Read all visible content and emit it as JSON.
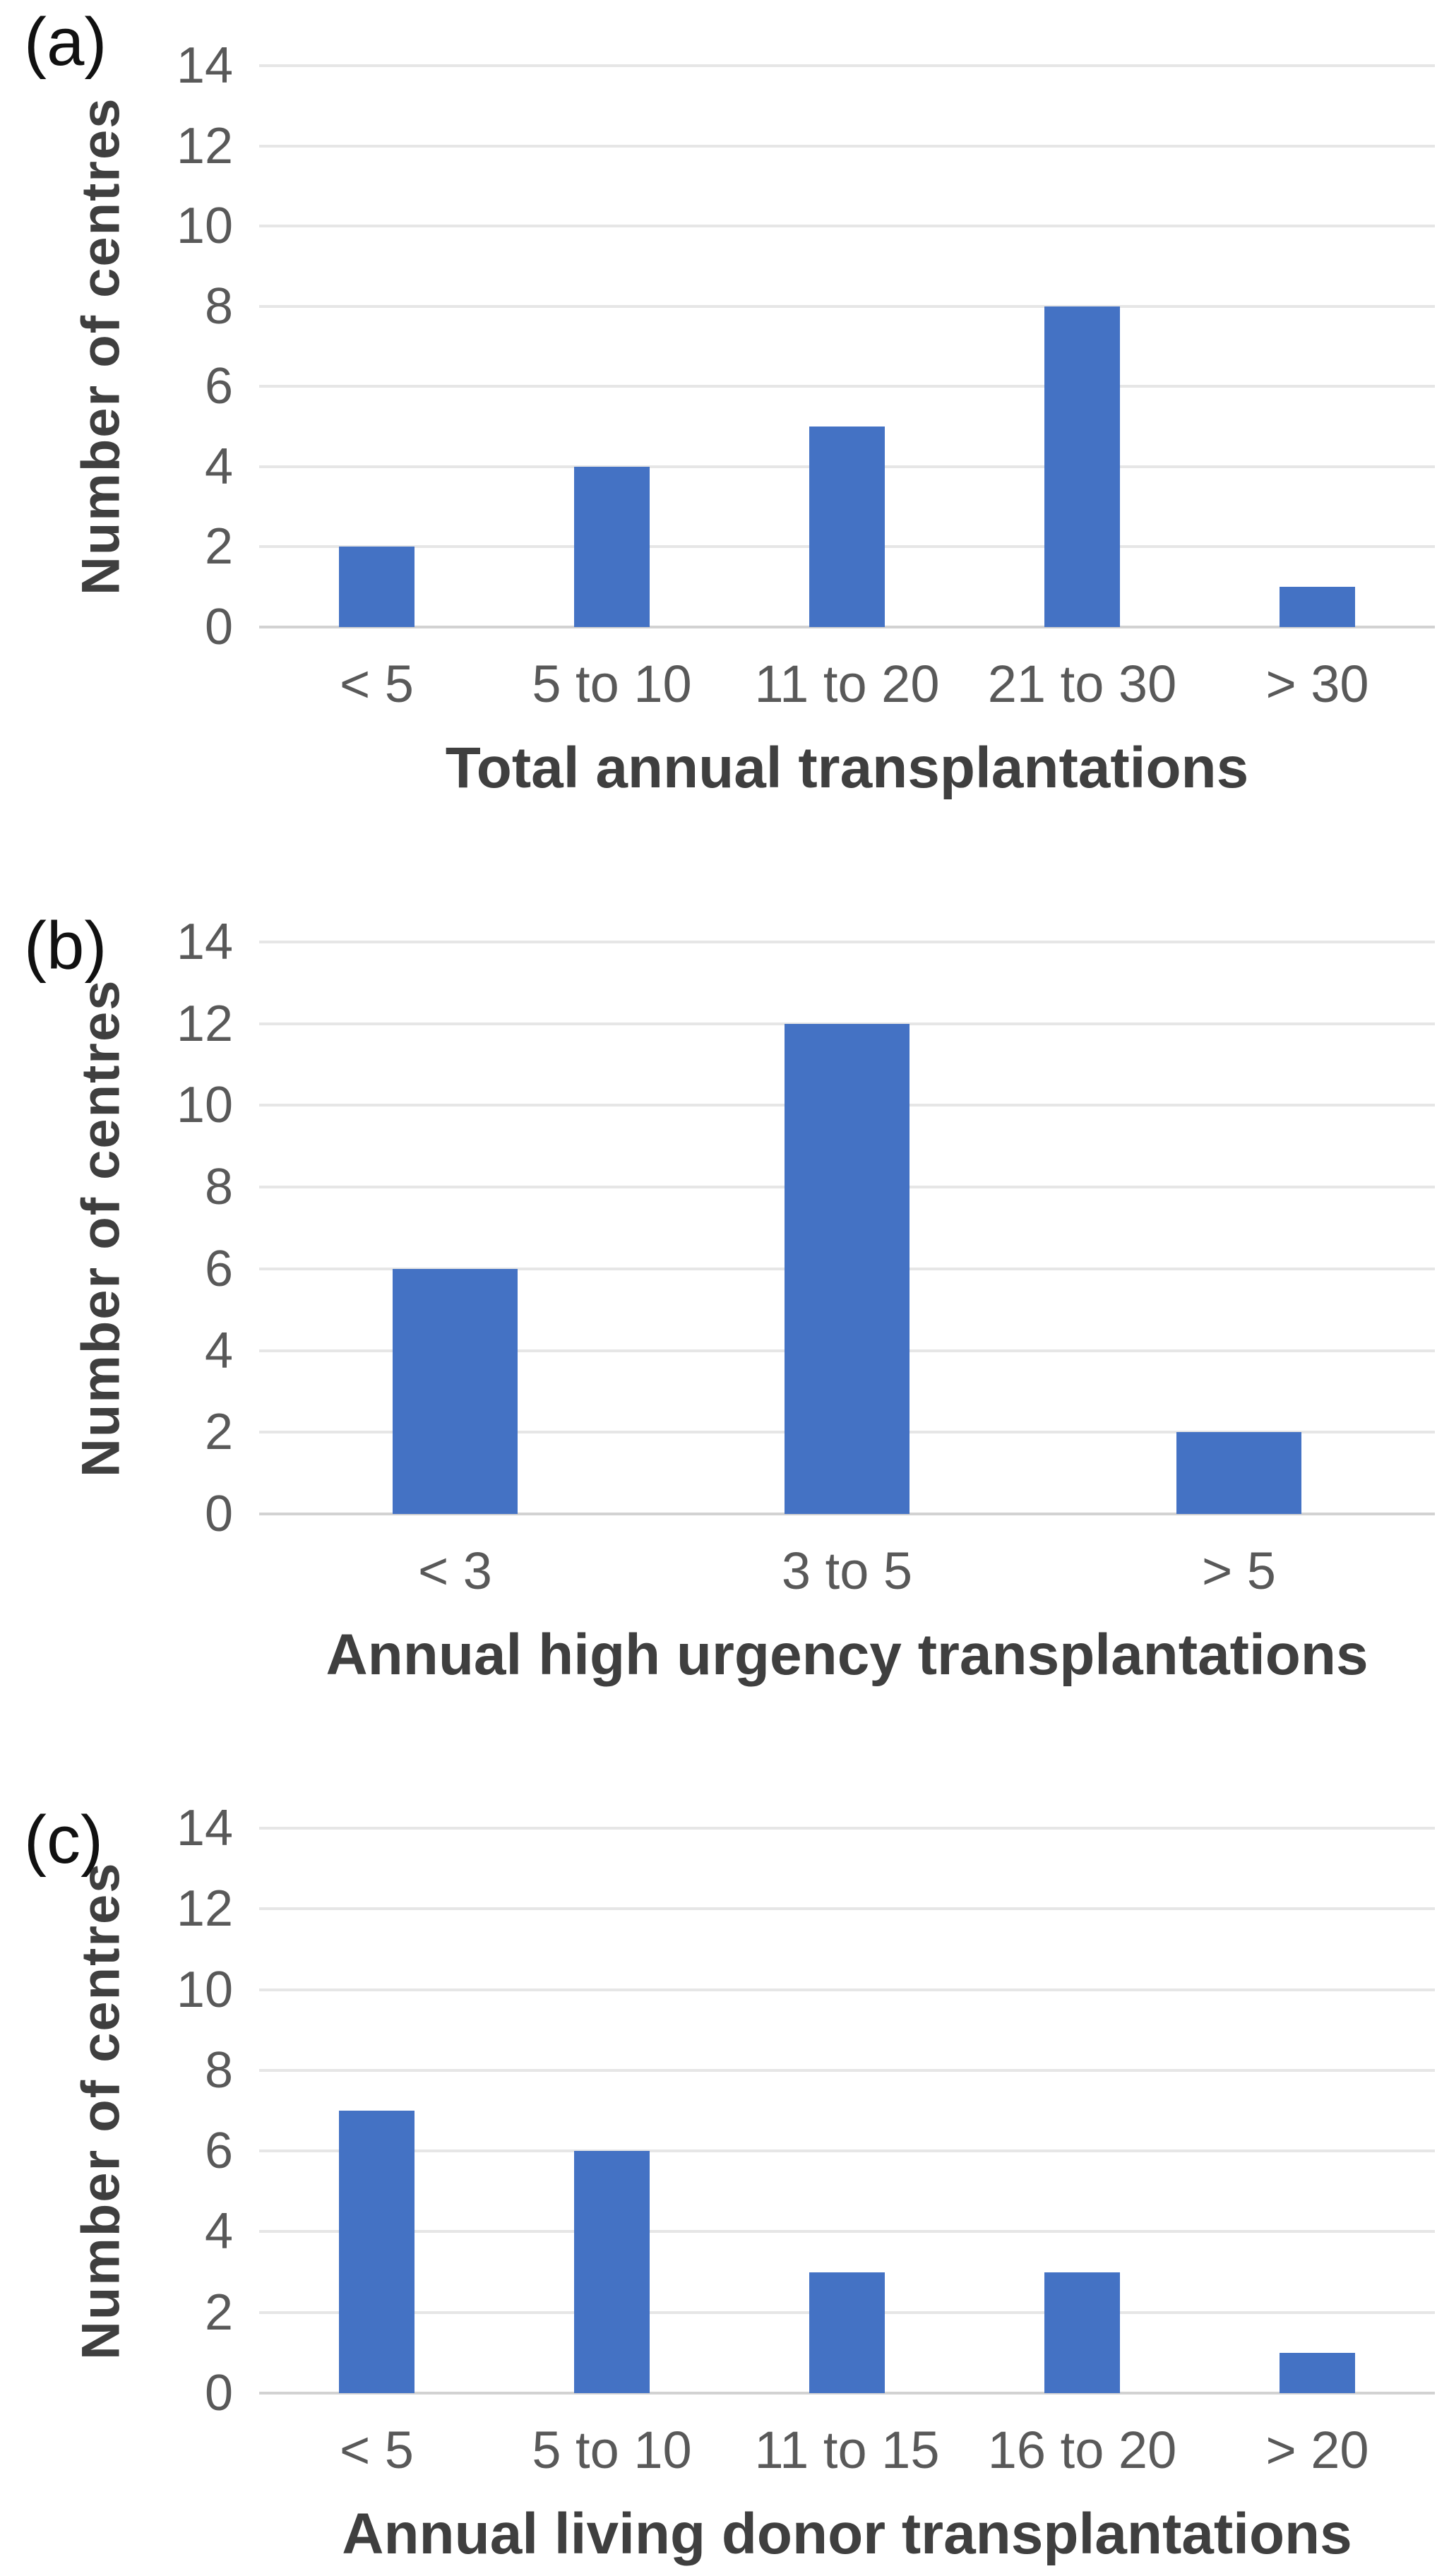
{
  "figure": {
    "background": "#ffffff",
    "bar_color": "#4472c4",
    "gridline_color": "#e6e6e6",
    "axis_line_color": "#d2d2d2",
    "tick_label_color": "#595959",
    "axis_title_color": "#3f3f3f",
    "panel_label_color": "#111111"
  },
  "chart_data": [
    {
      "type": "bar",
      "panel_label": "(a)",
      "title": "",
      "categories": [
        "< 5",
        "5 to 10",
        "11 to 20",
        "21 to 30",
        "> 30"
      ],
      "values": [
        2,
        4,
        5,
        8,
        1
      ],
      "xlabel": "Total annual transplantations",
      "ylabel": "Number of centres",
      "ylim": [
        0,
        14
      ],
      "yticks": [
        0,
        2,
        4,
        6,
        8,
        10,
        12,
        14
      ],
      "grid": true,
      "legend": "none"
    },
    {
      "type": "bar",
      "panel_label": "(b)",
      "title": "",
      "categories": [
        "< 3",
        "3 to 5",
        "> 5"
      ],
      "values": [
        6,
        12,
        2
      ],
      "xlabel": "Annual high urgency transplantations",
      "ylabel": "Number of centres",
      "ylim": [
        0,
        14
      ],
      "yticks": [
        0,
        2,
        4,
        6,
        8,
        10,
        12,
        14
      ],
      "grid": true,
      "legend": "none"
    },
    {
      "type": "bar",
      "panel_label": "(c)",
      "title": "",
      "categories": [
        "< 5",
        "5 to 10",
        "11 to 15",
        "16 to 20",
        "> 20"
      ],
      "values": [
        7,
        6,
        3,
        3,
        1
      ],
      "xlabel": "Annual living donor transplantations",
      "ylabel": "Number of centres",
      "ylim": [
        0,
        14
      ],
      "yticks": [
        0,
        2,
        4,
        6,
        8,
        10,
        12,
        14
      ],
      "grid": true,
      "legend": "none"
    }
  ]
}
